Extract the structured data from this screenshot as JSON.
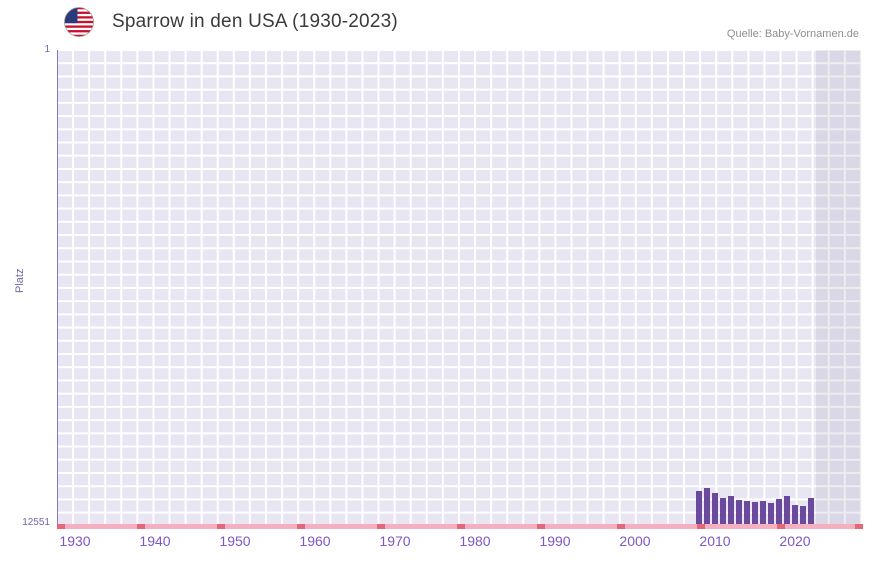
{
  "header": {
    "title": "Sparrow in den USA (1930-2023)",
    "source": "Quelle: Baby-Vornamen.de"
  },
  "chart_data": {
    "type": "bar",
    "title": "Sparrow in den USA (1930-2023)",
    "ylabel": "Platz",
    "xlabel": "",
    "grid": true,
    "legend": "none",
    "y_axis": {
      "top_label": "1",
      "bottom_label": "12551",
      "min": 1,
      "max": 12551,
      "inverted": true
    },
    "x_ticks": [
      1930,
      1940,
      1950,
      1960,
      1970,
      1980,
      1990,
      2000,
      2010,
      2020
    ],
    "x_range": [
      1928,
      2028
    ],
    "series": [
      {
        "name": "Platz",
        "years": [
          2008,
          2009,
          2010,
          2011,
          2012,
          2013,
          2014,
          2015,
          2016,
          2017,
          2018,
          2019,
          2020,
          2021,
          2022
        ],
        "values": [
          11630,
          11550,
          11680,
          11810,
          11760,
          11860,
          11890,
          11920,
          11890,
          11940,
          11840,
          11760,
          12000,
          12020,
          11810
        ]
      }
    ],
    "colors": {
      "bar": "#6b4a9e",
      "grid_background": "#e9e6f3",
      "grid_line": "#ffffff",
      "x_axis_line": "#f4b0bf",
      "decade_mark": "#e4687a",
      "tick_label": "#7e57c2",
      "future_band": "rgba(140,140,160,0.16)"
    }
  }
}
